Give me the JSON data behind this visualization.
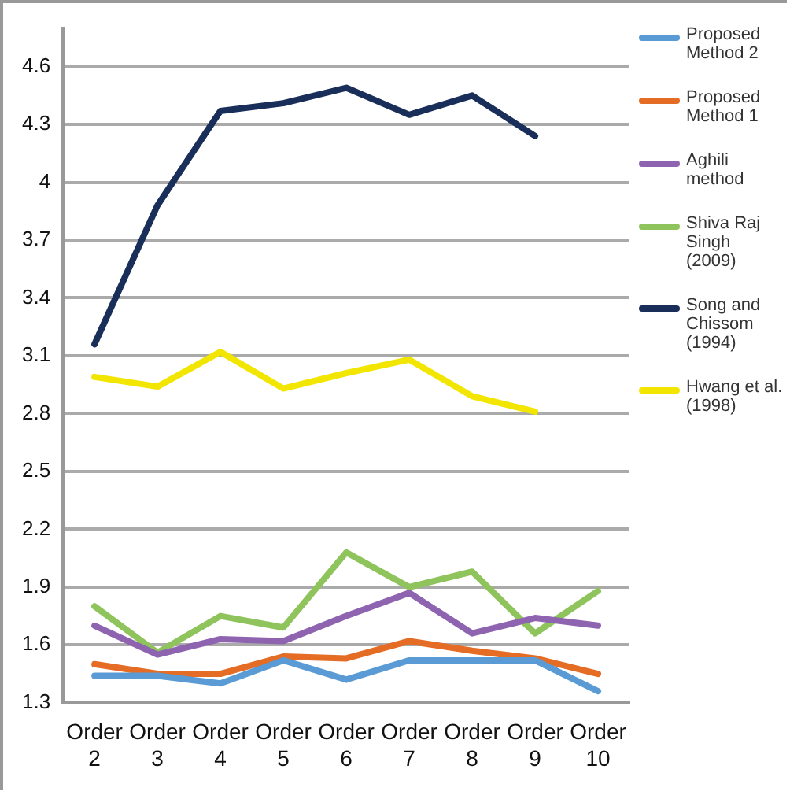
{
  "chart_data": {
    "type": "line",
    "categories": [
      "Order 2",
      "Order 3",
      "Order 4",
      "Order 5",
      "Order 6",
      "Order 7",
      "Order 8",
      "Order 9",
      "Order 10"
    ],
    "series": [
      {
        "name": "Proposed Method 2",
        "color": "#5b9bd5",
        "values": [
          1.44,
          1.44,
          1.4,
          1.52,
          1.42,
          1.52,
          1.52,
          1.52,
          1.36
        ]
      },
      {
        "name": "Proposed Method 1",
        "color": "#e46c24",
        "values": [
          1.5,
          1.45,
          1.45,
          1.54,
          1.53,
          1.62,
          1.57,
          1.53,
          1.45
        ]
      },
      {
        "name": "Aghili method",
        "color": "#8e64b0",
        "values": [
          1.7,
          1.55,
          1.63,
          1.62,
          1.75,
          1.87,
          1.66,
          1.74,
          1.7
        ]
      },
      {
        "name": "Shiva Raj Singh (2009)",
        "color": "#8fc45c",
        "values": [
          1.8,
          1.56,
          1.75,
          1.69,
          2.08,
          1.9,
          1.98,
          1.66,
          1.88
        ]
      },
      {
        "name": "Song and Chissom (1994)",
        "color": "#1a2e5a",
        "values": [
          3.16,
          3.88,
          4.37,
          4.41,
          4.49,
          4.35,
          4.45,
          4.24,
          null
        ]
      },
      {
        "name": "Hwang et al. (1998)",
        "color": "#f2e600",
        "values": [
          2.99,
          2.94,
          3.12,
          2.93,
          3.01,
          3.08,
          2.89,
          2.81,
          null
        ]
      }
    ],
    "ylim": [
      1.3,
      4.8
    ],
    "yticks": [
      1.3,
      1.6,
      1.9,
      2.2,
      2.5,
      2.8,
      3.1,
      3.4,
      3.7,
      4,
      4.3,
      4.6
    ],
    "grid": "y",
    "legend": "right",
    "marker": "none",
    "line_style": "solid"
  }
}
